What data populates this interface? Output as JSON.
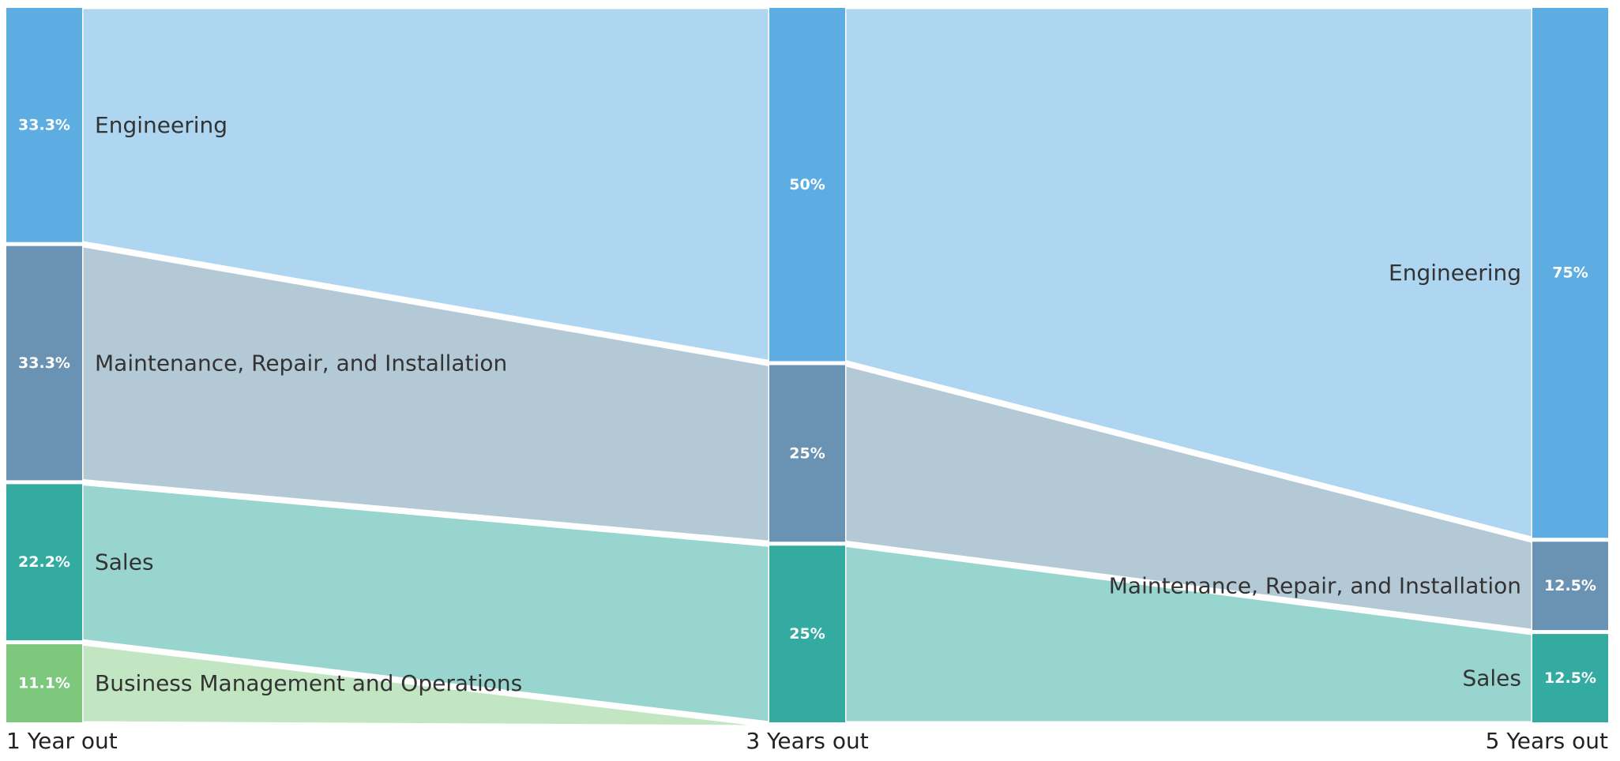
{
  "chart_data": {
    "type": "sankey",
    "columns": [
      "1 Year out",
      "3 Years out",
      "5 Years out"
    ],
    "series": [
      {
        "name": "Engineering",
        "color": "#5dade2",
        "flow_color": "#aed6f1",
        "values": [
          33.3,
          50,
          75
        ],
        "value_labels": [
          "33.3%",
          "50%",
          "75%"
        ]
      },
      {
        "name": "Maintenance, Repair, and Installation",
        "color": "#6a93b3",
        "flow_color": "#b4c9d6",
        "values": [
          33.3,
          25,
          12.5
        ],
        "value_labels": [
          "33.3%",
          "25%",
          "12.5%"
        ]
      },
      {
        "name": "Sales",
        "color": "#33aba1",
        "flow_color": "#98d5cf",
        "values": [
          22.2,
          25,
          12.5
        ],
        "value_labels": [
          "22.2%",
          "25%",
          "12.5%"
        ]
      },
      {
        "name": "Business Management and Operations",
        "color": "#7dc87d",
        "flow_color": "#c2e5c2",
        "values": [
          11.1,
          0,
          0
        ],
        "value_labels": [
          "11.1%",
          "",
          ""
        ]
      }
    ],
    "node_labels": {
      "1 Year out": [
        "Engineering",
        "Maintenance, Repair, and Installation",
        "Sales",
        "Business Management and Operations"
      ],
      "5 Years out": [
        "Engineering",
        "Maintenance, Repair, and Installation",
        "Sales"
      ]
    }
  }
}
